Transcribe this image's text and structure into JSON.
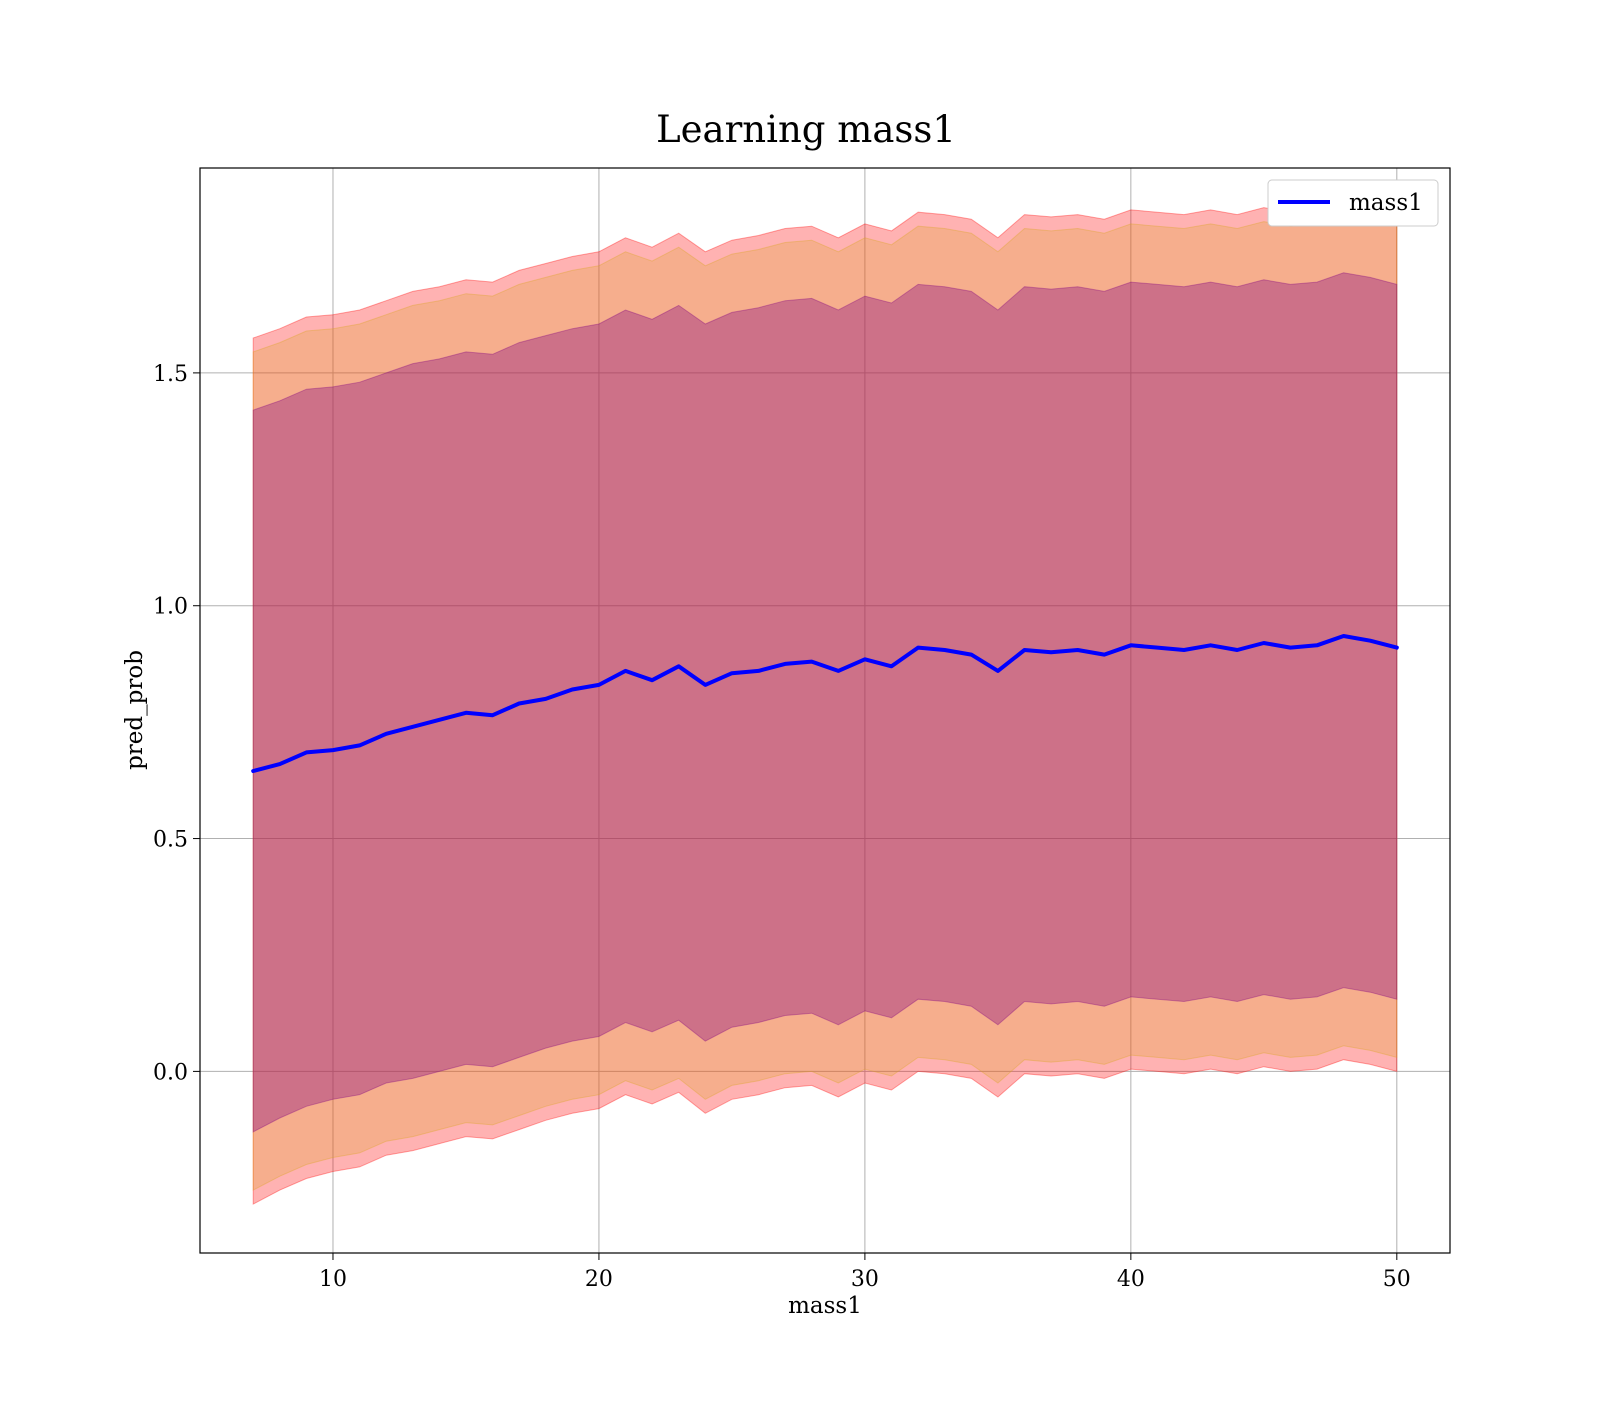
{
  "chart_data": {
    "type": "line",
    "title": "Learning mass1",
    "xlabel": "mass1",
    "ylabel": "pred_prob",
    "xlim": [
      5,
      52
    ],
    "ylim": [
      -0.39,
      1.94
    ],
    "grid": true,
    "legend_position": "top-right",
    "xticks": [
      10,
      20,
      30,
      40,
      50
    ],
    "xtick_labels": [
      "10",
      "20",
      "30",
      "40",
      "50"
    ],
    "yticks": [
      0.0,
      0.5,
      1.0,
      1.5
    ],
    "ytick_labels": [
      "0.0",
      "0.5",
      "1.0",
      "1.5"
    ],
    "series": [
      {
        "name": "mass1",
        "color": "#0000ff",
        "x": [
          7,
          8,
          9,
          10,
          11,
          12,
          13,
          14,
          15,
          16,
          17,
          18,
          19,
          20,
          21,
          22,
          23,
          24,
          25,
          26,
          27,
          28,
          29,
          30,
          31,
          32,
          33,
          34,
          35,
          36,
          37,
          38,
          39,
          40,
          41,
          42,
          43,
          44,
          45,
          46,
          47,
          48,
          49,
          50
        ],
        "y": [
          0.645,
          0.66,
          0.685,
          0.69,
          0.7,
          0.725,
          0.74,
          0.755,
          0.77,
          0.765,
          0.79,
          0.8,
          0.82,
          0.83,
          0.86,
          0.84,
          0.87,
          0.83,
          0.855,
          0.86,
          0.875,
          0.88,
          0.86,
          0.885,
          0.87,
          0.91,
          0.905,
          0.895,
          0.86,
          0.905,
          0.9,
          0.905,
          0.895,
          0.915,
          0.91,
          0.905,
          0.915,
          0.905,
          0.92,
          0.91,
          0.915,
          0.935,
          0.925,
          0.91
        ]
      }
    ],
    "bands": [
      {
        "color": "#ff0000",
        "opacity": 0.3,
        "lower": [
          -0.285,
          -0.255,
          -0.23,
          -0.215,
          -0.205,
          -0.18,
          -0.17,
          -0.155,
          -0.14,
          -0.145,
          -0.125,
          -0.105,
          -0.09,
          -0.08,
          -0.05,
          -0.07,
          -0.045,
          -0.09,
          -0.06,
          -0.05,
          -0.035,
          -0.03,
          -0.055,
          -0.025,
          -0.04,
          0.0,
          -0.005,
          -0.015,
          -0.055,
          -0.005,
          -0.01,
          -0.005,
          -0.015,
          0.005,
          0.0,
          -0.005,
          0.005,
          -0.005,
          0.01,
          0.0,
          0.005,
          0.025,
          0.015,
          0.0
        ],
        "upper": [
          1.575,
          1.595,
          1.62,
          1.625,
          1.635,
          1.655,
          1.675,
          1.685,
          1.7,
          1.695,
          1.72,
          1.735,
          1.75,
          1.76,
          1.79,
          1.77,
          1.8,
          1.76,
          1.785,
          1.795,
          1.81,
          1.815,
          1.79,
          1.82,
          1.805,
          1.845,
          1.84,
          1.83,
          1.79,
          1.84,
          1.835,
          1.84,
          1.83,
          1.85,
          1.845,
          1.84,
          1.85,
          1.84,
          1.855,
          1.845,
          1.85,
          1.87,
          1.86,
          1.845
        ]
      },
      {
        "color": "#daa520",
        "opacity": 0.25,
        "lower": [
          -0.255,
          -0.225,
          -0.2,
          -0.185,
          -0.175,
          -0.15,
          -0.14,
          -0.125,
          -0.11,
          -0.115,
          -0.095,
          -0.075,
          -0.06,
          -0.05,
          -0.02,
          -0.04,
          -0.015,
          -0.06,
          -0.03,
          -0.02,
          -0.005,
          0.0,
          -0.025,
          0.005,
          -0.01,
          0.03,
          0.025,
          0.015,
          -0.025,
          0.025,
          0.02,
          0.025,
          0.015,
          0.035,
          0.03,
          0.025,
          0.035,
          0.025,
          0.04,
          0.03,
          0.035,
          0.055,
          0.045,
          0.03
        ],
        "upper": [
          1.545,
          1.565,
          1.59,
          1.595,
          1.605,
          1.625,
          1.645,
          1.655,
          1.67,
          1.665,
          1.69,
          1.705,
          1.72,
          1.73,
          1.76,
          1.74,
          1.77,
          1.73,
          1.755,
          1.765,
          1.78,
          1.785,
          1.76,
          1.79,
          1.775,
          1.815,
          1.81,
          1.8,
          1.76,
          1.81,
          1.805,
          1.81,
          1.8,
          1.82,
          1.815,
          1.81,
          1.82,
          1.81,
          1.825,
          1.815,
          1.82,
          1.84,
          1.83,
          1.815
        ]
      },
      {
        "color": "#800080",
        "opacity": 0.35,
        "lower": [
          -0.13,
          -0.1,
          -0.075,
          -0.06,
          -0.05,
          -0.025,
          -0.015,
          0.0,
          0.015,
          0.01,
          0.03,
          0.05,
          0.065,
          0.075,
          0.105,
          0.085,
          0.11,
          0.065,
          0.095,
          0.105,
          0.12,
          0.125,
          0.1,
          0.13,
          0.115,
          0.155,
          0.15,
          0.14,
          0.1,
          0.15,
          0.145,
          0.15,
          0.14,
          0.16,
          0.155,
          0.15,
          0.16,
          0.15,
          0.165,
          0.155,
          0.16,
          0.18,
          0.17,
          0.155
        ],
        "upper": [
          1.42,
          1.44,
          1.465,
          1.47,
          1.48,
          1.5,
          1.52,
          1.53,
          1.545,
          1.54,
          1.565,
          1.58,
          1.595,
          1.605,
          1.635,
          1.615,
          1.645,
          1.605,
          1.63,
          1.64,
          1.655,
          1.66,
          1.635,
          1.665,
          1.65,
          1.69,
          1.685,
          1.675,
          1.635,
          1.685,
          1.68,
          1.685,
          1.675,
          1.695,
          1.69,
          1.685,
          1.695,
          1.685,
          1.7,
          1.69,
          1.695,
          1.715,
          1.705,
          1.69
        ]
      }
    ]
  }
}
